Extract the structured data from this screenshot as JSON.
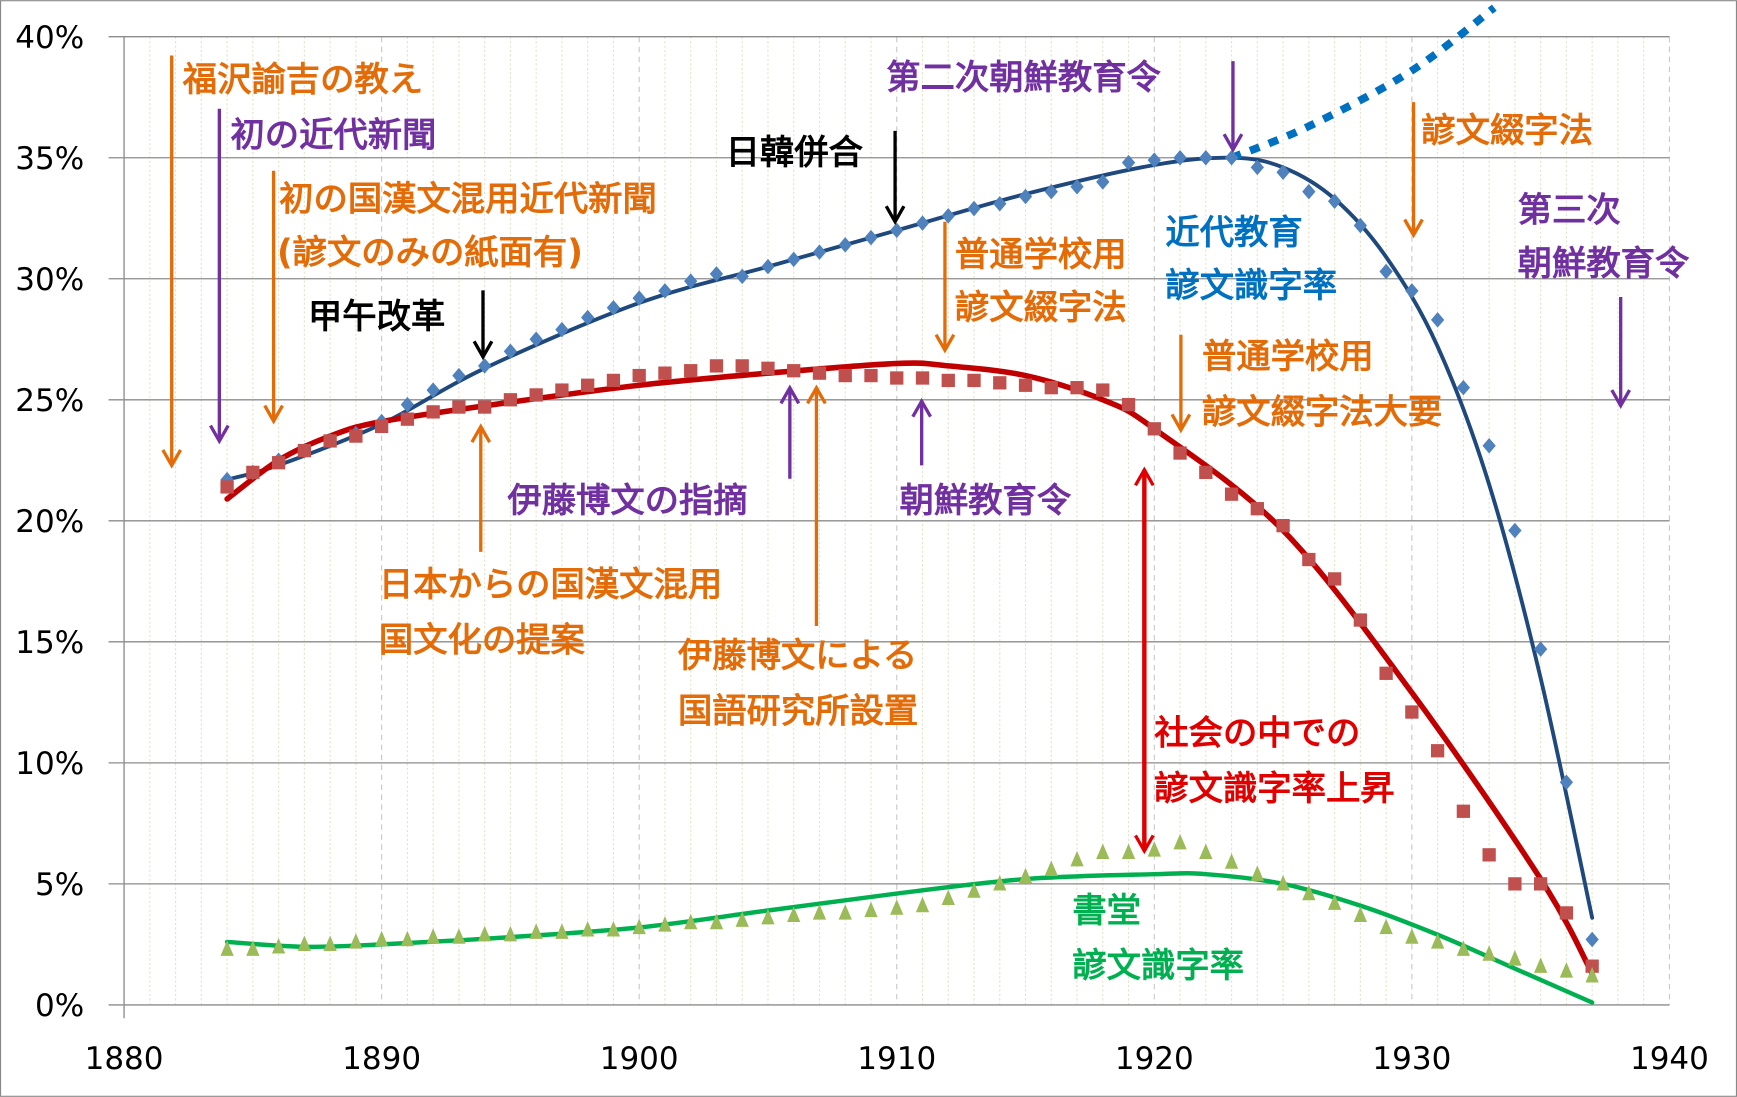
{
  "chart_data": {
    "type": "scatter",
    "title": "",
    "xlabel": "",
    "ylabel": "",
    "xlim": [
      1880,
      1940
    ],
    "ylim": [
      0,
      0.4
    ],
    "x_ticks": [
      "1880",
      "1890",
      "1900",
      "1910",
      "1920",
      "1930",
      "1940"
    ],
    "y_ticks": [
      "0%",
      "5%",
      "10%",
      "15%",
      "20%",
      "25%",
      "30%",
      "35%",
      "40%"
    ],
    "grid": "horizontal major solid, vertical major dashed, yearly minor dotted",
    "legend": "none",
    "x": [
      1884,
      1885,
      1886,
      1887,
      1888,
      1889,
      1890,
      1891,
      1892,
      1893,
      1894,
      1895,
      1896,
      1897,
      1898,
      1899,
      1900,
      1901,
      1902,
      1903,
      1904,
      1905,
      1906,
      1907,
      1908,
      1909,
      1910,
      1911,
      1912,
      1913,
      1914,
      1915,
      1916,
      1917,
      1918,
      1919,
      1920,
      1921,
      1922,
      1923,
      1924,
      1925,
      1926,
      1927,
      1928,
      1929,
      1930,
      1931,
      1932,
      1933,
      1934,
      1935,
      1936,
      1937
    ],
    "series": [
      {
        "marker": "diamond",
        "color": "#4f81bd",
        "trend_color": "#1f497d",
        "values": [
          21.7,
          22.0,
          22.5,
          22.9,
          23.3,
          23.6,
          24.1,
          24.8,
          25.4,
          26.0,
          26.4,
          27.0,
          27.5,
          27.9,
          28.4,
          28.8,
          29.2,
          29.5,
          29.9,
          30.2,
          30.1,
          30.5,
          30.8,
          31.1,
          31.4,
          31.7,
          32.0,
          32.3,
          32.6,
          32.9,
          33.1,
          33.4,
          33.6,
          33.8,
          34.0,
          34.8,
          34.9,
          35.0,
          35.0,
          35.0,
          34.6,
          34.4,
          33.6,
          33.2,
          32.2,
          30.3,
          29.5,
          28.3,
          25.5,
          23.1,
          19.6,
          14.7,
          9.2,
          2.7
        ],
        "trend": [
          [
            1884,
            21.7
          ],
          [
            1886,
            22.3
          ],
          [
            1890,
            24.0
          ],
          [
            1894,
            26.3
          ],
          [
            1900,
            29.0
          ],
          [
            1905,
            30.5
          ],
          [
            1910,
            32.0
          ],
          [
            1915,
            33.5
          ],
          [
            1920,
            34.7
          ],
          [
            1923,
            35.0
          ],
          [
            1925,
            34.6
          ],
          [
            1927,
            33.3
          ],
          [
            1929,
            30.9
          ],
          [
            1931,
            27.2
          ],
          [
            1933,
            21.5
          ],
          [
            1935,
            13.5
          ],
          [
            1937,
            3.6
          ]
        ],
        "extension_dotted": [
          [
            1923,
            35.0
          ],
          [
            1926,
            36.3
          ],
          [
            1930,
            38.6
          ],
          [
            1933.2,
            41.2
          ]
        ],
        "extension_color": "#0070c0"
      },
      {
        "marker": "square",
        "color": "#c0504d",
        "trend_color": "#c00000",
        "values": [
          21.4,
          22.0,
          22.4,
          22.9,
          23.3,
          23.5,
          23.9,
          24.2,
          24.5,
          24.7,
          24.7,
          25.0,
          25.2,
          25.4,
          25.6,
          25.8,
          26.0,
          26.1,
          26.2,
          26.4,
          26.4,
          26.3,
          26.2,
          26.1,
          26.0,
          26.0,
          25.9,
          25.9,
          25.8,
          25.8,
          25.7,
          25.6,
          25.5,
          25.5,
          25.4,
          24.8,
          23.8,
          22.8,
          22.0,
          21.1,
          20.5,
          19.8,
          18.4,
          17.6,
          15.9,
          13.7,
          12.1,
          10.5,
          8.0,
          6.2,
          5.0,
          5.0,
          3.8,
          1.6
        ],
        "trend": [
          [
            1884,
            20.9
          ],
          [
            1886,
            22.5
          ],
          [
            1888,
            23.5
          ],
          [
            1890,
            24.1
          ],
          [
            1895,
            24.9
          ],
          [
            1900,
            25.6
          ],
          [
            1905,
            26.1
          ],
          [
            1910,
            26.5
          ],
          [
            1912,
            26.4
          ],
          [
            1915,
            26.0
          ],
          [
            1918,
            25.0
          ],
          [
            1920,
            23.8
          ],
          [
            1925,
            19.6
          ],
          [
            1930,
            12.9
          ],
          [
            1935,
            5.2
          ],
          [
            1937,
            1.3
          ]
        ]
      },
      {
        "marker": "triangle",
        "color": "#9bbb59",
        "trend_color": "#00b050",
        "values": [
          2.3,
          2.3,
          2.4,
          2.5,
          2.5,
          2.6,
          2.7,
          2.7,
          2.8,
          2.8,
          2.9,
          2.9,
          3.0,
          3.0,
          3.1,
          3.1,
          3.2,
          3.3,
          3.4,
          3.4,
          3.5,
          3.6,
          3.7,
          3.8,
          3.8,
          3.9,
          4.0,
          4.1,
          4.4,
          4.7,
          5.0,
          5.3,
          5.6,
          6.0,
          6.3,
          6.3,
          6.4,
          6.7,
          6.3,
          5.9,
          5.4,
          5.0,
          4.6,
          4.2,
          3.7,
          3.2,
          2.8,
          2.6,
          2.3,
          2.1,
          1.9,
          1.6,
          1.4,
          1.2
        ],
        "trend": [
          [
            1884,
            2.6
          ],
          [
            1887,
            2.4
          ],
          [
            1890,
            2.5
          ],
          [
            1895,
            2.8
          ],
          [
            1900,
            3.2
          ],
          [
            1905,
            3.9
          ],
          [
            1910,
            4.6
          ],
          [
            1915,
            5.2
          ],
          [
            1920,
            5.4
          ],
          [
            1922,
            5.4
          ],
          [
            1925,
            5.0
          ],
          [
            1928,
            4.1
          ],
          [
            1931,
            2.9
          ],
          [
            1934,
            1.5
          ],
          [
            1937,
            0.1
          ]
        ]
      }
    ],
    "annotations": {
      "fukuzawa": "福沢諭吉の教え",
      "first_newspaper": "初の近代新聞",
      "mixed_newspaper_1": "初の国漢文混用近代新聞",
      "mixed_newspaper_2": "(諺文のみの紙面有)",
      "gabo_reform": "甲午改革",
      "annexation": "日韓併合",
      "second_edict": "第二次朝鮮教育令",
      "orthography": "諺文綴字法",
      "third_edict_1": "第三次",
      "third_edict_2": "朝鮮教育令",
      "modern_edu_1": "近代教育",
      "modern_edu_2": "諺文識字率",
      "common_school_1": "普通学校用",
      "common_school_2": "諺文綴字法",
      "common_school_outline_1": "普通学校用",
      "common_school_outline_2": "諺文綴字法大要",
      "ito_remark": "伊藤博文の指摘",
      "first_edict": "朝鮮教育令",
      "japan_proposal_1": "日本からの国漢文混用",
      "japan_proposal_2": "国文化の提案",
      "ito_institute_1": "伊藤博文による",
      "ito_institute_2": "国語研究所設置",
      "society_rise_1": "社会の中での",
      "society_rise_2": "諺文識字率上昇",
      "seodang_1": "書堂",
      "seodang_2": "諺文識字率"
    },
    "annotation_colors": {
      "orange": "#e36c09",
      "purple": "#7030a0",
      "black": "#000000",
      "blue": "#0070c0",
      "red": "#e00000",
      "green": "#00b050"
    }
  }
}
